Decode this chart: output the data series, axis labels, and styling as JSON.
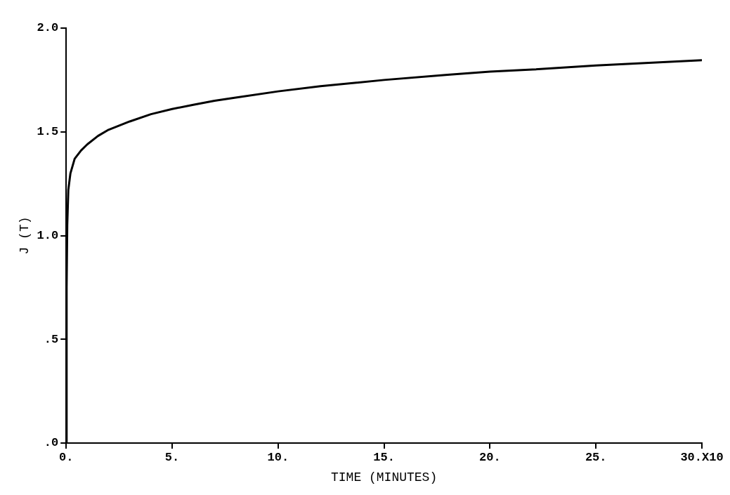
{
  "chart_data": {
    "type": "line",
    "xlabel": "TIME (MINUTES)",
    "ylabel": "J (T)",
    "x": [
      0,
      0.02,
      0.05,
      0.1,
      0.2,
      0.4,
      0.7,
      1.0,
      1.5,
      2.0,
      3.0,
      4.0,
      5.0,
      6.0,
      7.0,
      8.0,
      10.0,
      12.0,
      15.0,
      18.0,
      20.0,
      22.0,
      25.0,
      28.0,
      30.0
    ],
    "series": [
      {
        "color": "#000000",
        "values": [
          0,
          0.75,
          1.05,
          1.22,
          1.3,
          1.37,
          1.41,
          1.44,
          1.48,
          1.51,
          1.55,
          1.585,
          1.61,
          1.63,
          1.65,
          1.665,
          1.695,
          1.72,
          1.75,
          1.775,
          1.79,
          1.8,
          1.82,
          1.835,
          1.845
        ]
      }
    ],
    "xlim": [
      0,
      30
    ],
    "xticks": [
      {
        "value": 0,
        "label": "0."
      },
      {
        "value": 5,
        "label": "5."
      },
      {
        "value": 10,
        "label": "10."
      },
      {
        "value": 15,
        "label": "15."
      },
      {
        "value": 20,
        "label": "20."
      },
      {
        "value": 25,
        "label": "25."
      },
      {
        "value": 30,
        "label": "30.X10"
      }
    ],
    "ylim": [
      0,
      2
    ],
    "yticks": [
      {
        "value": 0,
        "label": ".0"
      },
      {
        "value": 0.5,
        "label": ".5"
      },
      {
        "value": 1,
        "label": "1.0"
      },
      {
        "value": 1.5,
        "label": "1.5"
      },
      {
        "value": 2,
        "label": "2.0"
      }
    ],
    "grid": false,
    "legend": false,
    "marker": "none",
    "line_style": "solid"
  }
}
